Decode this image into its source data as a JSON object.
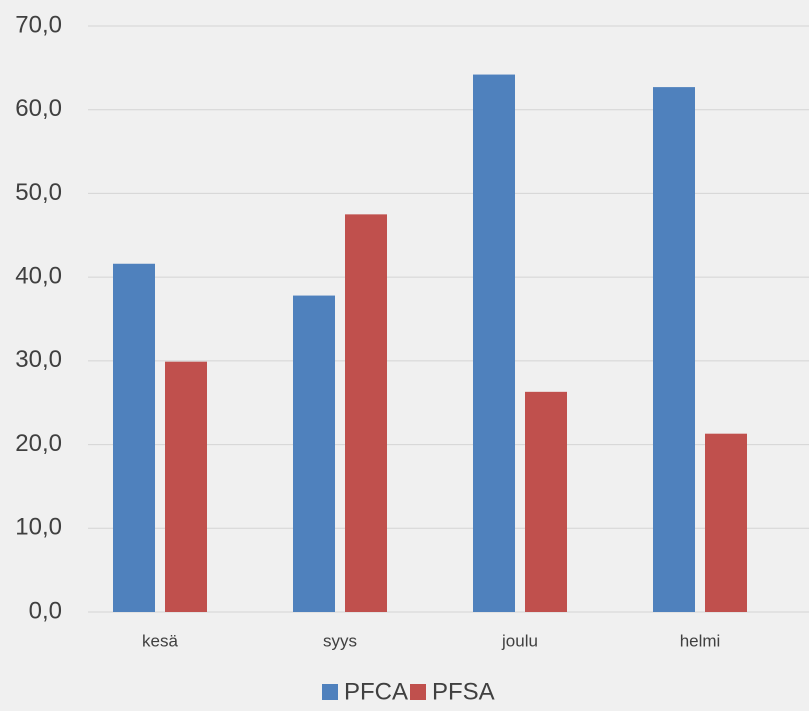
{
  "chart_data": {
    "type": "bar",
    "categories": [
      "kesä",
      "syys",
      "joulu",
      "helmi"
    ],
    "series": [
      {
        "name": "PFCA",
        "color": "#4f81bd",
        "values": [
          41.6,
          37.8,
          64.2,
          62.7
        ]
      },
      {
        "name": "PFSA",
        "color": "#c0504d",
        "values": [
          29.9,
          47.5,
          26.3,
          21.3
        ]
      }
    ],
    "ylim": [
      0,
      70
    ],
    "yticks": [
      {
        "value": 0,
        "label": "0,0"
      },
      {
        "value": 10,
        "label": "10,0"
      },
      {
        "value": 20,
        "label": "20,0"
      },
      {
        "value": 30,
        "label": "30,0"
      },
      {
        "value": 40,
        "label": "40,0"
      },
      {
        "value": 50,
        "label": "50,0"
      },
      {
        "value": 60,
        "label": "60,0"
      },
      {
        "value": 70,
        "label": "70,0"
      }
    ],
    "grid": true,
    "legend": "bottom"
  }
}
